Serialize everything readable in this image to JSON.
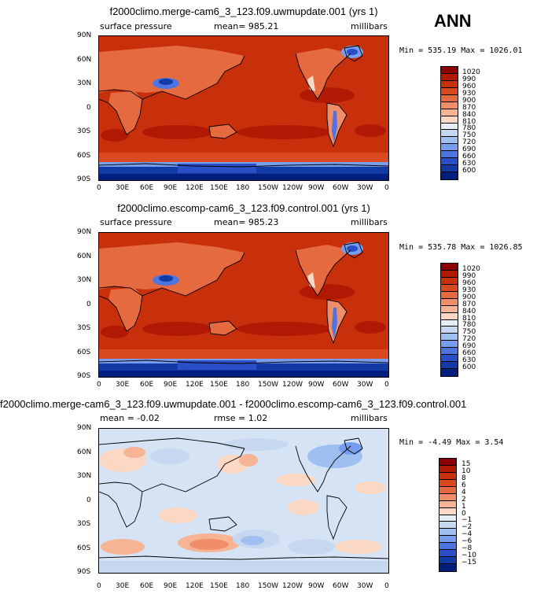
{
  "season": "ANN",
  "panels": [
    {
      "title": "f2000climo.merge-cam6_3_123.f09.uwmupdate.001 (yrs 1)",
      "left_label": "surface pressure",
      "center_label": "mean=  985.21",
      "right_label": "millibars",
      "minmax": "Min = 535.19 Max = 1026.01",
      "cbar_labels": [
        "1020",
        "990",
        "960",
        "930",
        "900",
        "870",
        "840",
        "810",
        "780",
        "750",
        "720",
        "690",
        "660",
        "630",
        "600"
      ],
      "cbar_colors": [
        "#8b0000",
        "#b01a04",
        "#c8300c",
        "#d94a1e",
        "#e66a40",
        "#f08e6a",
        "#f7b494",
        "#fbd8c4",
        "#e6eef8",
        "#c6d8f0",
        "#9ebff0",
        "#779eee",
        "#4e74e0",
        "#2a4ec6",
        "#123aa4",
        "#001e7e"
      ]
    },
    {
      "title": "f2000climo.escomp-cam6_3_123.f09.control.001 (yrs 1)",
      "left_label": "surface pressure",
      "center_label": "mean=  985.23",
      "right_label": "millibars",
      "minmax": "Min = 535.78 Max = 1026.85",
      "cbar_labels": [
        "1020",
        "990",
        "960",
        "930",
        "900",
        "870",
        "840",
        "810",
        "780",
        "750",
        "720",
        "690",
        "660",
        "630",
        "600"
      ],
      "cbar_colors": [
        "#8b0000",
        "#b01a04",
        "#c8300c",
        "#d94a1e",
        "#e66a40",
        "#f08e6a",
        "#f7b494",
        "#fbd8c4",
        "#e6eef8",
        "#c6d8f0",
        "#9ebff0",
        "#779eee",
        "#4e74e0",
        "#2a4ec6",
        "#123aa4",
        "#001e7e"
      ]
    },
    {
      "title": "f2000climo.merge-cam6_3_123.f09.uwmupdate.001 - f2000climo.escomp-cam6_3_123.f09.control.001",
      "left_label": "mean =  -0.02",
      "center_label": "rmse =   1.02",
      "right_label": "millibars",
      "minmax": "Min =  -4.49 Max =   3.54",
      "cbar_labels": [
        "15",
        "10",
        "8",
        "6",
        "4",
        "2",
        "1",
        "0",
        "−1",
        "−2",
        "−4",
        "−6",
        "−8",
        "−10",
        "−15"
      ],
      "cbar_colors": [
        "#8b0000",
        "#b01a04",
        "#c8300c",
        "#d94a1e",
        "#e66a40",
        "#f08e6a",
        "#f7b494",
        "#fbd8c4",
        "#e6eef8",
        "#c6d8f0",
        "#9ebff0",
        "#779eee",
        "#4e74e0",
        "#2a4ec6",
        "#123aa4",
        "#001e7e"
      ]
    }
  ],
  "lon_ticks": [
    "0",
    "30E",
    "60E",
    "90E",
    "120E",
    "150E",
    "180",
    "150W",
    "120W",
    "90W",
    "60W",
    "30W",
    "0"
  ],
  "lat_ticks": [
    "90N",
    "60N",
    "30N",
    "0",
    "30S",
    "60S",
    "90S"
  ]
}
